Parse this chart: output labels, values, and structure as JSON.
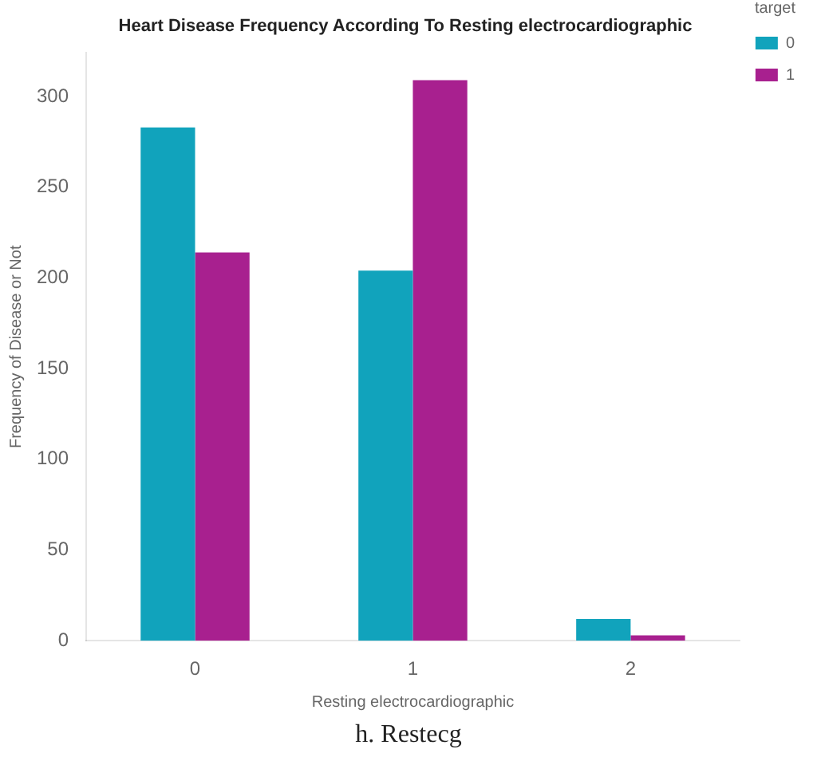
{
  "chart_data": {
    "type": "bar",
    "title": "Heart Disease Frequency According To Resting electrocardiographic",
    "xlabel": "Resting electrocardiographic",
    "ylabel": "Frequency of Disease or Not",
    "legend_title": "target",
    "categories": [
      "0",
      "1",
      "2"
    ],
    "series": [
      {
        "name": "0",
        "color": "#11a3bc",
        "values": [
          283,
          204,
          12
        ]
      },
      {
        "name": "1",
        "color": "#a8208f",
        "values": [
          214,
          309,
          3
        ]
      }
    ],
    "ylim": [
      0,
      324
    ],
    "yticks": [
      0,
      50,
      100,
      150,
      200,
      250,
      300
    ],
    "grid": false,
    "legend": "top right",
    "annotations": [
      "h. Restecg"
    ]
  }
}
